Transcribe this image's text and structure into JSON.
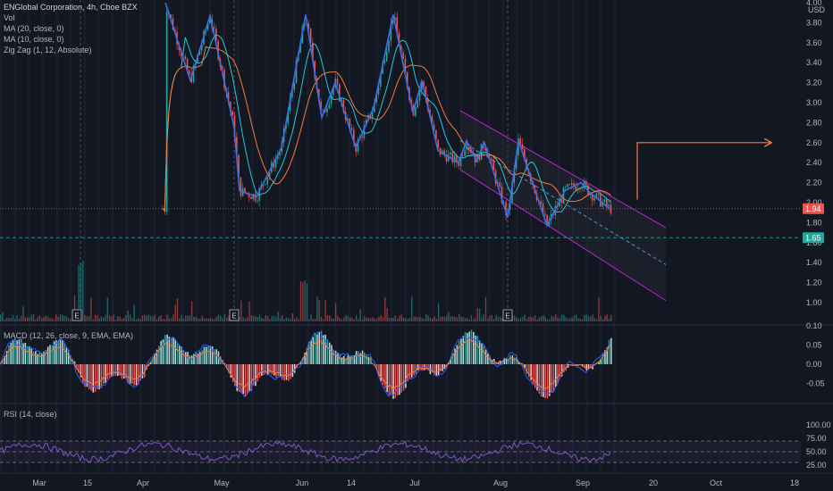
{
  "header": {
    "title": "ENGlobal Corporation, 4h, Cboe BZX",
    "vol_label": "Vol",
    "ma20_label": "MA (20, close, 0)",
    "ma10_label": "MA (10, close, 0)",
    "zigzag_label": "Zig Zag (1, 12, Absolute)",
    "macd_label": "MACD (12, 26, close, 9, EMA, EMA)",
    "rsi_label": "RSI (14, close)"
  },
  "colors": {
    "background": "#131722",
    "up": "#26a69a",
    "down": "#ef5350",
    "ma20": "#f57c3a",
    "ma10": "#26c6da",
    "zigzag": "#3d6ee8",
    "channel": "#c026d3",
    "target": "#f57c3a",
    "rsi": "#7e57c2",
    "price_badge": "#ef5350",
    "support_badge": "#26a69a"
  },
  "chart_data": {
    "type": "line",
    "symbol": "ENGlobal Corporation",
    "interval": "4h",
    "exchange": "Cboe BZX",
    "price_axis": {
      "unit": "USD",
      "ticks": [
        1.0,
        1.2,
        1.4,
        1.6,
        1.8,
        2.0,
        2.2,
        2.4,
        2.6,
        2.8,
        3.0,
        3.2,
        3.4,
        3.6,
        3.8,
        4.0
      ],
      "range": [
        0.92,
        4.0
      ]
    },
    "tick_labels": [
      "4.00",
      "3.80",
      "3.60",
      "3.40",
      "3.20",
      "3.00",
      "2.80",
      "2.60",
      "2.40",
      "2.20",
      "2.00",
      "1.80",
      "1.60",
      "1.40",
      "1.20",
      "1.00"
    ],
    "last_price": "1.94",
    "support_level": "1.65",
    "x_axis_labels": [
      "Mar",
      "15",
      "Apr",
      "May",
      "Jun",
      "14",
      "Jul",
      "Aug",
      "Sep",
      "20",
      "Oct",
      "18"
    ],
    "earnings_marker": "E",
    "zigzag": [
      {
        "x": 185,
        "y": 4.0
      },
      {
        "x": 213,
        "y": 3.22
      },
      {
        "x": 235,
        "y": 3.87
      },
      {
        "x": 262,
        "y": 2.75
      },
      {
        "x": 268,
        "y": 2.12
      },
      {
        "x": 287,
        "y": 2.06
      },
      {
        "x": 315,
        "y": 2.55
      },
      {
        "x": 342,
        "y": 3.88
      },
      {
        "x": 360,
        "y": 2.85
      },
      {
        "x": 375,
        "y": 3.2
      },
      {
        "x": 398,
        "y": 2.55
      },
      {
        "x": 418,
        "y": 2.95
      },
      {
        "x": 440,
        "y": 3.88
      },
      {
        "x": 462,
        "y": 2.9
      },
      {
        "x": 472,
        "y": 3.22
      },
      {
        "x": 490,
        "y": 2.52
      },
      {
        "x": 513,
        "y": 2.4
      },
      {
        "x": 522,
        "y": 2.62
      },
      {
        "x": 533,
        "y": 2.42
      },
      {
        "x": 542,
        "y": 2.6
      },
      {
        "x": 568,
        "y": 1.85
      },
      {
        "x": 580,
        "y": 2.62
      },
      {
        "x": 612,
        "y": 1.77
      },
      {
        "x": 632,
        "y": 2.12
      },
      {
        "x": 650,
        "y": 2.2
      },
      {
        "x": 660,
        "y": 2.1
      },
      {
        "x": 682,
        "y": 1.94
      }
    ],
    "channel": {
      "upper": [
        {
          "x": 515,
          "y": 2.92
        },
        {
          "x": 745,
          "y": 1.75
        }
      ],
      "middle": [
        {
          "x": 515,
          "y": 2.62
        },
        {
          "x": 745,
          "y": 1.38
        }
      ],
      "lower": [
        {
          "x": 515,
          "y": 2.33
        },
        {
          "x": 745,
          "y": 1.02
        }
      ]
    },
    "target_arrow": [
      {
        "x": 713,
        "y": 2.03
      },
      {
        "x": 713,
        "y": 2.6
      },
      {
        "x": 862,
        "y": 2.6
      }
    ],
    "macd_axis": {
      "ticks": [
        0.1,
        0.05,
        0.0,
        -0.05
      ],
      "labels": [
        "0.10",
        "0.05",
        "0.00",
        "-0.05"
      ],
      "range": [
        -0.095,
        0.105
      ]
    },
    "rsi_axis": {
      "ticks": [
        100,
        75,
        50,
        25
      ],
      "labels": [
        "100.00",
        "75.00",
        "50.00",
        "25.00"
      ],
      "range": [
        20,
        100
      ]
    }
  }
}
